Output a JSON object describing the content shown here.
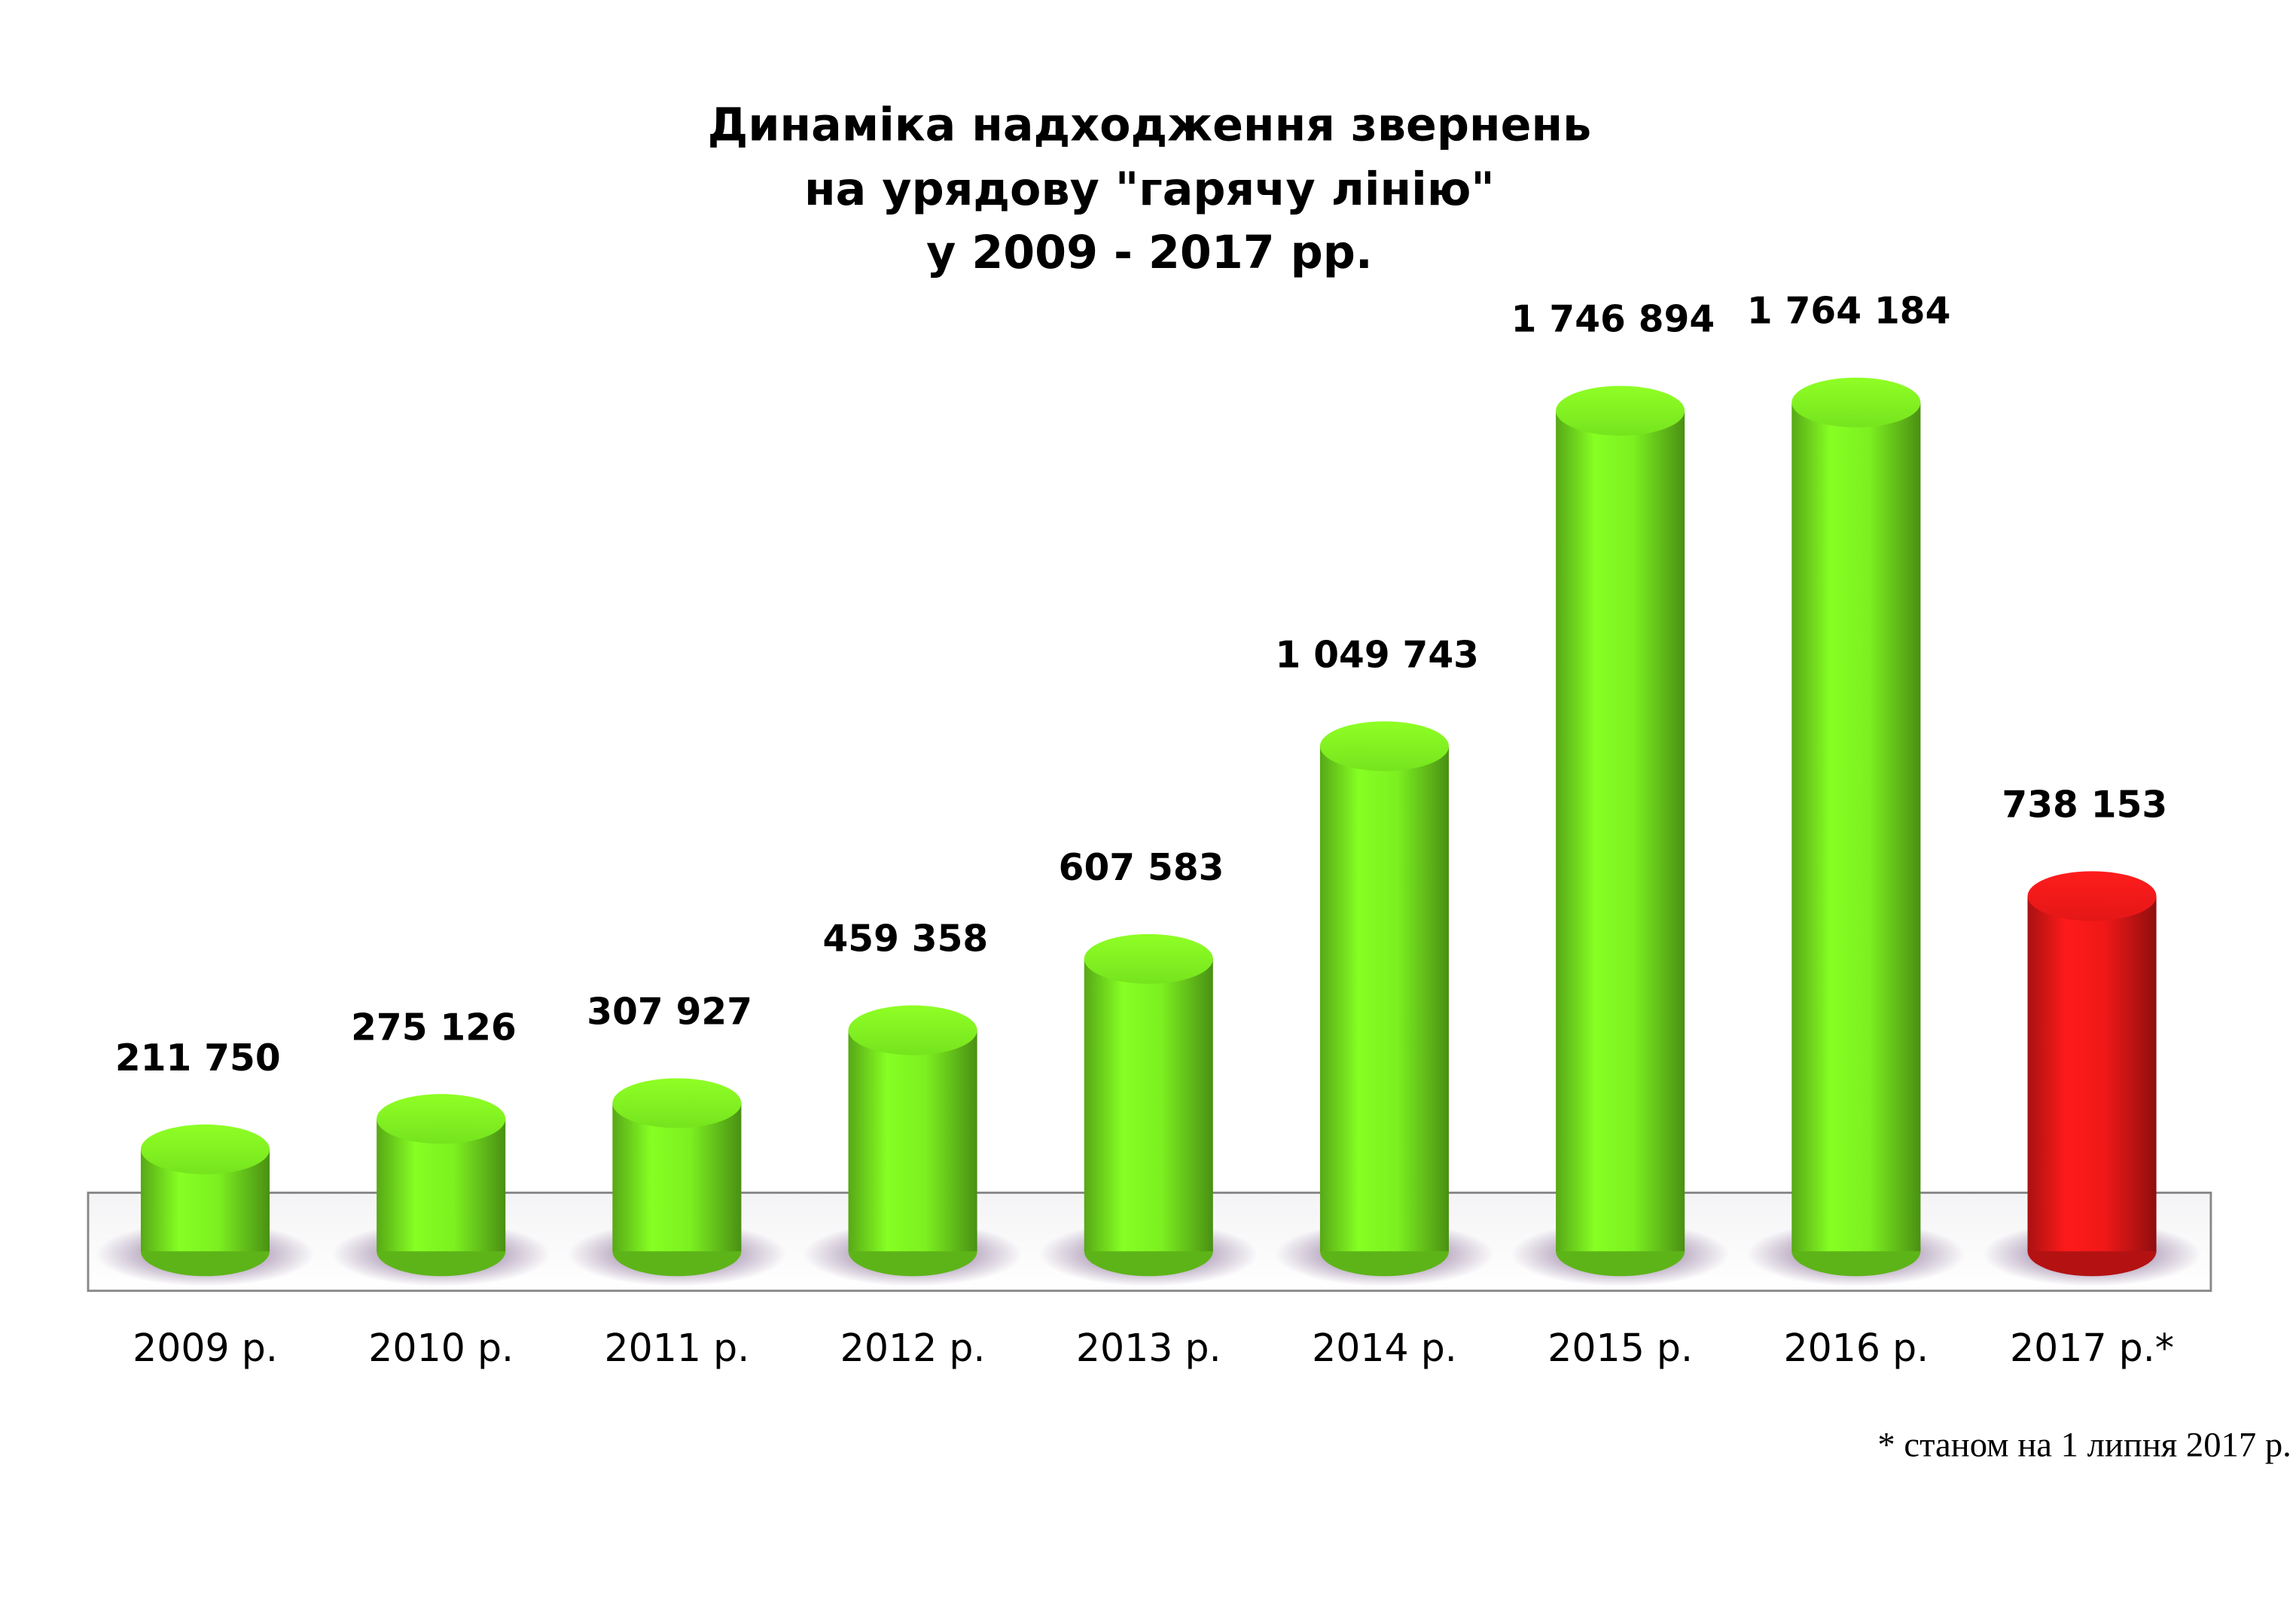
{
  "chart_data": {
    "type": "bar",
    "title": [
      "Динаміка надходження звернень",
      "на урядову \"гарячу лінію\"",
      "у 2009 - 2017 рр."
    ],
    "categories": [
      "2009 р.",
      "2010 р.",
      "2011 р.",
      "2012 р.",
      "2013 р.",
      "2014 р.",
      "2015 р.",
      "2016 р.",
      "2017 р.*"
    ],
    "values": [
      211750,
      275126,
      307927,
      459358,
      607583,
      1049743,
      1746894,
      1764184,
      738153
    ],
    "value_labels": [
      "211 750",
      "275 126",
      "307 927",
      "459 358",
      "607 583",
      "1 049 743",
      "1 746 894",
      "1 764 184",
      "738 153"
    ],
    "colors": [
      "#7cf020",
      "#7cf020",
      "#7cf020",
      "#7cf020",
      "#7cf020",
      "#7cf020",
      "#7cf020",
      "#7cf020",
      "#f01818"
    ],
    "footnote": "* станом на 1 липня 2017 р."
  }
}
